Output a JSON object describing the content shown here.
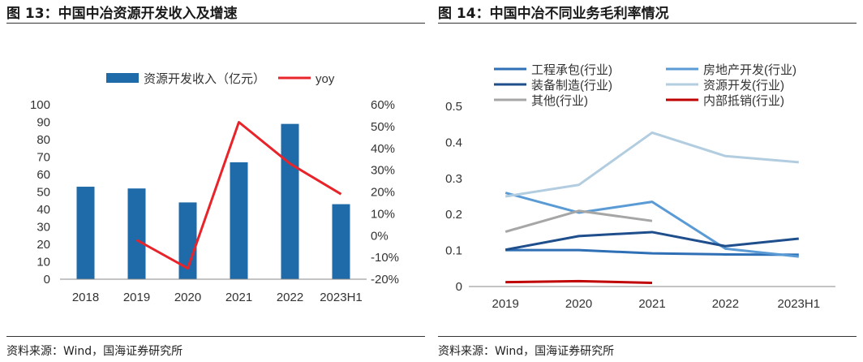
{
  "left": {
    "figure_title": "图 13：中国中冶资源开发收入及增速",
    "source": "资料来源：Wind，国海证券研究所"
  },
  "right": {
    "figure_title": "图 14：中国中冶不同业务毛利率情况",
    "source": "资料来源：Wind，国海证券研究所"
  },
  "chart_data": [
    {
      "type": "bar",
      "title": "",
      "categories": [
        "2018",
        "2019",
        "2020",
        "2021",
        "2022",
        "2023H1"
      ],
      "series": [
        {
          "name": "资源开发收入（亿元）",
          "kind": "bar",
          "axis": "left",
          "color": "#1f6aa8",
          "values": [
            53,
            52,
            44,
            67,
            89,
            43
          ]
        },
        {
          "name": "yoy",
          "kind": "line",
          "axis": "right",
          "color": "#e8242a",
          "values": [
            null,
            -0.02,
            -0.15,
            0.52,
            0.33,
            0.19
          ]
        }
      ],
      "y_left": {
        "min": 0,
        "max": 100,
        "ticks": [
          0,
          10,
          20,
          30,
          40,
          50,
          60,
          70,
          80,
          90,
          100
        ],
        "tick_labels": [
          "0",
          "10",
          "20",
          "30",
          "40",
          "50",
          "60",
          "70",
          "80",
          "90",
          "100"
        ]
      },
      "y_right": {
        "min": -0.2,
        "max": 0.6,
        "ticks": [
          -0.2,
          -0.1,
          0,
          0.1,
          0.2,
          0.3,
          0.4,
          0.5,
          0.6
        ],
        "tick_labels": [
          "-20%",
          "-10%",
          "0%",
          "10%",
          "20%",
          "30%",
          "40%",
          "50%",
          "60%"
        ]
      },
      "legend_position": "top"
    },
    {
      "type": "line",
      "title": "",
      "categories": [
        "2019",
        "2020",
        "2021",
        "2022",
        "2023H1"
      ],
      "series": [
        {
          "name": "工程承包(行业)",
          "color": "#2e6fb5",
          "values": [
            0.101,
            0.101,
            0.092,
            0.089,
            0.088
          ]
        },
        {
          "name": "房地产开发(行业)",
          "color": "#5b9bd5",
          "values": [
            0.26,
            0.205,
            0.235,
            0.105,
            0.083
          ]
        },
        {
          "name": "装备制造(行业)",
          "color": "#1f4e8c",
          "values": [
            0.102,
            0.14,
            0.151,
            0.112,
            0.133
          ]
        },
        {
          "name": "资源开发(行业)",
          "color": "#b3cde0",
          "values": [
            0.25,
            0.282,
            0.427,
            0.362,
            0.345
          ]
        },
        {
          "name": "其他(行业)",
          "color": "#a6a6a6",
          "values": [
            0.152,
            0.21,
            0.182,
            null,
            null
          ]
        },
        {
          "name": "内部抵销(行业)",
          "color": "#c00000",
          "values": [
            0.012,
            0.015,
            0.01,
            null,
            null
          ]
        }
      ],
      "y": {
        "min": 0,
        "max": 0.5,
        "ticks": [
          0,
          0.1,
          0.2,
          0.3,
          0.4,
          0.5
        ],
        "tick_labels": [
          "0",
          "0.1",
          "0.2",
          "0.3",
          "0.4",
          "0.5"
        ]
      },
      "legend_position": "top"
    }
  ]
}
